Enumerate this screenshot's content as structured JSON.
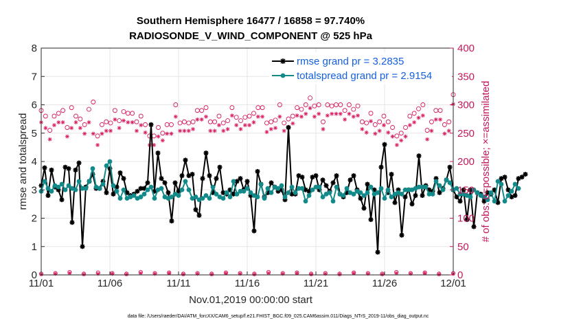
{
  "chart_data": {
    "type": "line",
    "title_line1": "Southern Hemisphere 16477 / 16858 = 97.740%",
    "title_line2": "RADIOSONDE_V_WIND_COMPONENT @ 525 hPa",
    "xlabel": "Nov.01,2019 00:00:00 start",
    "ylabel": "rmse and totalspread",
    "y2label": "# of obs: o=possible; ×=assimilated",
    "xlim": [
      0,
      30
    ],
    "ylim": [
      0,
      8
    ],
    "y2lim": [
      0,
      400
    ],
    "x_ticks": [
      0,
      5,
      10,
      15,
      20,
      25,
      30
    ],
    "x_tick_labels": [
      "11/01",
      "11/06",
      "11/11",
      "11/16",
      "11/21",
      "11/26",
      "12/01"
    ],
    "y_ticks": [
      "0",
      "1",
      "2",
      "3",
      "4",
      "5",
      "6",
      "7",
      "8"
    ],
    "y2_ticks": [
      "0",
      "50",
      "100",
      "150",
      "200",
      "250",
      "300",
      "350",
      "400"
    ],
    "colors": {
      "rmse": "#000000",
      "spread": "#138a8a",
      "obs": "#d81b60",
      "legend_text": "#1560e0"
    },
    "x_step": 0.25,
    "series": [
      {
        "name": "rmse",
        "legend": "rmse grand pr = 3.2835",
        "values": [
          3.15,
          3.78,
          2.8,
          3.7,
          3.1,
          3.0,
          2.65,
          3.8,
          3.75,
          1.85,
          3.7,
          3.95,
          1.0,
          3.1,
          3.3,
          3.55,
          3.05,
          3.05,
          3.3,
          2.9,
          3.75,
          2.85,
          3.1,
          3.6,
          3.4,
          2.9,
          2.8,
          2.85,
          2.95,
          3.05,
          3.05,
          3.25,
          5.3,
          2.95,
          4.3,
          3.4,
          3.25,
          2.9,
          1.9,
          3.25,
          2.95,
          3.5,
          4.05,
          3.5,
          3.55,
          2.3,
          2.1,
          3.4,
          4.3,
          3.5,
          2.9,
          3.4,
          3.8,
          2.9,
          2.85,
          3.0,
          2.85,
          3.3,
          3.4,
          3.0,
          3.3,
          2.8,
          1.55,
          3.65,
          3.2,
          2.75,
          2.9,
          3.25,
          3.1,
          2.95,
          3.0,
          2.65,
          5.2,
          2.85,
          2.85,
          3.5,
          3.45,
          3.0,
          2.95,
          3.45,
          3.5,
          3.0,
          3.35,
          3.15,
          2.95,
          3.25,
          3.5,
          2.85,
          2.75,
          2.9,
          3.35,
          3.5,
          3.0,
          2.7,
          2.35,
          3.2,
          1.95,
          3.0,
          0.8,
          3.8,
          4.6,
          2.9,
          3.55,
          2.55,
          3.0,
          1.4,
          2.75,
          3.0,
          2.5,
          2.8,
          4.2,
          2.8,
          3.15,
          3.0,
          2.95,
          3.4,
          2.9,
          3.05,
          3.35,
          3.8,
          3.0,
          2.75,
          2.6,
          3.0,
          1.95,
          3.0,
          1.7,
          2.9,
          2.85,
          2.6,
          2.9,
          2.85,
          3.0,
          2.55,
          3.4,
          3.45,
          3.0,
          2.75,
          2.8,
          3.4,
          3.45,
          3.55
        ]
      },
      {
        "name": "totalspread",
        "legend": "totalspread grand pr = 2.9154",
        "values": [
          2.95,
          3.3,
          3.05,
          2.95,
          3.15,
          3.1,
          3.2,
          3.0,
          3.15,
          3.05,
          3.0,
          3.3,
          3.05,
          3.05,
          3.3,
          3.75,
          3.1,
          3.05,
          3.2,
          3.85,
          4.0,
          3.15,
          2.95,
          2.7,
          3.0,
          2.7,
          2.75,
          2.8,
          2.7,
          2.75,
          2.85,
          3.0,
          3.1,
          2.7,
          3.0,
          3.05,
          2.75,
          2.7,
          2.75,
          2.85,
          2.8,
          3.0,
          3.3,
          3.0,
          2.7,
          2.75,
          2.65,
          2.7,
          2.8,
          2.7,
          3.1,
          2.85,
          2.75,
          2.7,
          2.9,
          2.75,
          3.3,
          2.85,
          2.95,
          2.95,
          3.05,
          2.9,
          2.8,
          2.75,
          3.2,
          2.7,
          3.05,
          2.9,
          3.1,
          3.05,
          3.15,
          2.75,
          2.9,
          3.1,
          2.9,
          3.05,
          3.05,
          2.6,
          2.8,
          3.0,
          3.1,
          3.1,
          2.75,
          2.85,
          2.9,
          2.6,
          3.1,
          2.85,
          2.8,
          3.05,
          2.9,
          2.85,
          2.95,
          2.9,
          2.8,
          2.9,
          3.1,
          2.85,
          2.9,
          3.05,
          2.7,
          3.0,
          2.75,
          2.85,
          2.9,
          2.85,
          3.0,
          3.0,
          3.0,
          3.05,
          3.1,
          3.1,
          3.1,
          2.85,
          2.85,
          3.3,
          3.15,
          3.0,
          3.35,
          3.25,
          3.0,
          3.05,
          2.85,
          2.85,
          2.8,
          2.75,
          3.0,
          2.9,
          2.8,
          2.75,
          2.65,
          2.9,
          2.6,
          3.3,
          3.2,
          2.6,
          2.8,
          2.95,
          3.2,
          3.05
        ]
      }
    ],
    "obs_possible": [
      290,
      280,
      255,
      280,
      285,
      290,
      260,
      295,
      280,
      275,
      265,
      292,
      305,
      245,
      265,
      270,
      268,
      290,
      272,
      288,
      285,
      285,
      270,
      280,
      265,
      245,
      245,
      260,
      250,
      265,
      265,
      300,
      268,
      270,
      268,
      270,
      290,
      290,
      295,
      270,
      270,
      280,
      268,
      272,
      295,
      278,
      272,
      278,
      280,
      285,
      295,
      295,
      268,
      270,
      273,
      300,
      268,
      275,
      280,
      295,
      292,
      300,
      312,
      298,
      300,
      270,
      300,
      298,
      300,
      300,
      290,
      300,
      292,
      298,
      270,
      268,
      285,
      265,
      270,
      280,
      270,
      260,
      245,
      250,
      260,
      280,
      285,
      293,
      300,
      255,
      270,
      290,
      290,
      265,
      270,
      318
    ],
    "obs_assimilated": [
      280,
      270,
      250,
      275,
      280,
      280,
      255,
      270,
      280,
      270,
      260,
      280,
      260,
      240,
      260,
      265,
      265,
      285,
      270,
      283,
      280,
      280,
      265,
      275,
      262,
      240,
      240,
      255,
      248,
      260,
      260,
      290,
      265,
      265,
      265,
      268,
      285,
      285,
      290,
      265,
      265,
      275,
      265,
      268,
      292,
      275,
      268,
      275,
      275,
      280,
      290,
      290,
      263,
      268,
      270,
      290,
      265,
      272,
      278,
      292,
      290,
      295,
      305,
      290,
      295,
      268,
      292,
      295,
      295,
      295,
      285,
      295,
      290,
      292,
      268,
      262,
      282,
      260,
      265,
      275,
      262,
      255,
      240,
      248,
      255,
      275,
      280,
      288,
      292,
      250,
      265,
      285,
      285,
      260,
      265,
      312
    ],
    "obs_low_possible": [
      2,
      3,
      5,
      2,
      4,
      3,
      2,
      5,
      3,
      4,
      2,
      3,
      2,
      4,
      3,
      2,
      5,
      3,
      4,
      2,
      3,
      2,
      4,
      3,
      2,
      5,
      3,
      4,
      2,
      3
    ],
    "obs_low_assimilated": [
      1,
      2,
      3,
      1,
      2,
      2,
      1,
      3,
      2,
      3,
      1,
      2,
      1,
      3,
      2,
      1,
      3,
      2,
      3,
      1,
      2,
      1,
      3,
      2,
      1,
      3,
      2,
      3,
      1,
      2
    ]
  },
  "footnote": "data file: /Users/raeder/DAI/ATM_forcXX/CAM6_setup/f.e21.FHIST_BGC.f09_025.CAM6assim.011/Diags_NTrS_2019-11/obs_diag_output.nc"
}
